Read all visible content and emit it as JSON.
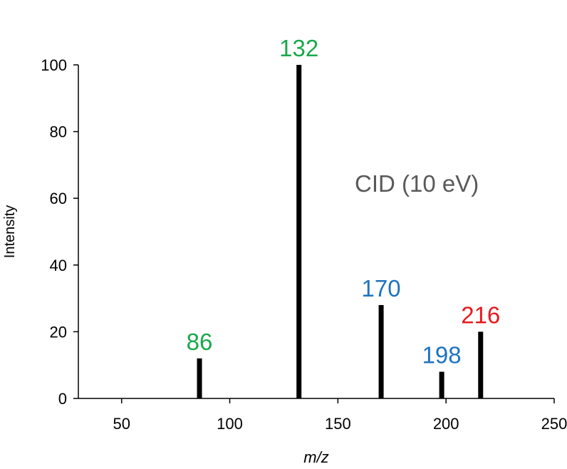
{
  "chart_data": {
    "type": "bar",
    "title": "",
    "xlabel": "m/z",
    "ylabel": "Intensity",
    "xlim": [
      30,
      250
    ],
    "ylim": [
      0,
      100
    ],
    "xticks": [
      50,
      100,
      150,
      200,
      250
    ],
    "yticks": [
      0,
      20,
      40,
      60,
      80,
      100
    ],
    "grid": false,
    "annotation": "CID (10 eV)",
    "peaks": [
      {
        "mz": 86,
        "intensity": 12,
        "label": "86",
        "color": "#19a84a"
      },
      {
        "mz": 132,
        "intensity": 100,
        "label": "132",
        "color": "#19a84a"
      },
      {
        "mz": 170,
        "intensity": 28,
        "label": "170",
        "color": "#1f73c2"
      },
      {
        "mz": 198,
        "intensity": 8,
        "label": "198",
        "color": "#1f73c2"
      },
      {
        "mz": 216,
        "intensity": 20,
        "label": "216",
        "color": "#e8191e"
      }
    ],
    "bar_color": "#000000",
    "axis_color": "#000000"
  }
}
